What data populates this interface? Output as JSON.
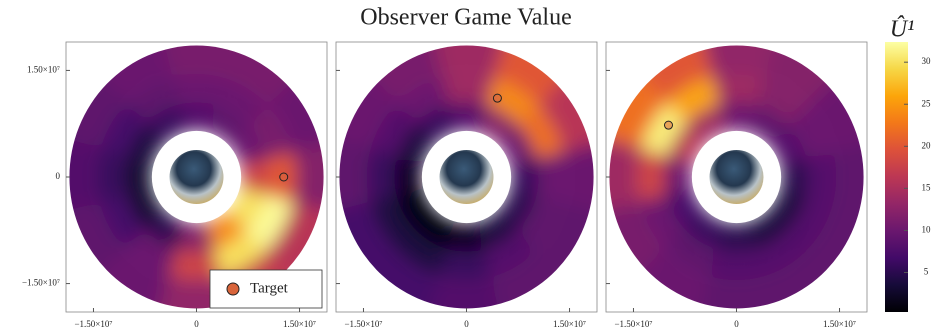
{
  "chart_data": {
    "type": "polar-heatmap",
    "title": "Observer Game Value",
    "colorbar_label": "Û¹",
    "clim": [
      0.3,
      32.4
    ],
    "cticks": [
      5,
      10,
      15,
      20,
      25,
      30
    ],
    "xlim": [
      -19000000,
      19000000
    ],
    "ylim": [
      -19000000,
      19000000
    ],
    "xticks": [
      {
        "value": -15000000,
        "label": "−1.50×10⁷"
      },
      0,
      {
        "value": 15000000,
        "label": "1.50×10⁷"
      }
    ],
    "yticks": [
      {
        "value": -15000000,
        "label": "−1.50×10⁷"
      },
      0,
      {
        "value": 15000000,
        "label": "1.50×10⁷"
      }
    ],
    "theta": [
      0,
      30,
      60,
      90,
      120,
      150,
      180,
      210,
      240,
      270,
      300,
      330
    ],
    "r_edges": [
      6500000,
      10500000,
      14500000,
      18500000
    ],
    "legend": {
      "label": "Target",
      "color": "#d9653b"
    },
    "panels": [
      {
        "values": [
          [
            18,
            10,
            9,
            8,
            6,
            4,
            3,
            3,
            5,
            12,
            24,
            30
          ],
          [
            20,
            11,
            10,
            10,
            9,
            7,
            6,
            7,
            10,
            18,
            30,
            32
          ],
          [
            12,
            10,
            11,
            11,
            10,
            9,
            8,
            9,
            10,
            13,
            17,
            16
          ]
        ],
        "target": [
          12700000,
          0
        ]
      },
      {
        "values": [
          [
            6,
            10,
            12,
            8,
            6,
            4,
            2,
            1,
            1,
            2,
            4,
            5
          ],
          [
            10,
            22,
            24,
            14,
            10,
            8,
            6,
            4,
            4,
            6,
            8,
            9
          ],
          [
            10,
            16,
            20,
            14,
            11,
            10,
            9,
            7,
            7,
            8,
            9,
            9
          ]
        ],
        "target": [
          4500000,
          11100000
        ]
      },
      {
        "values": [
          [
            5,
            8,
            9,
            10,
            14,
            16,
            10,
            7,
            6,
            5,
            4,
            4
          ],
          [
            8,
            10,
            12,
            14,
            26,
            31,
            18,
            10,
            9,
            8,
            8,
            8
          ],
          [
            9,
            10,
            12,
            13,
            20,
            22,
            14,
            11,
            10,
            9,
            9,
            9
          ]
        ],
        "target": [
          -9900000,
          7300000
        ]
      }
    ]
  }
}
